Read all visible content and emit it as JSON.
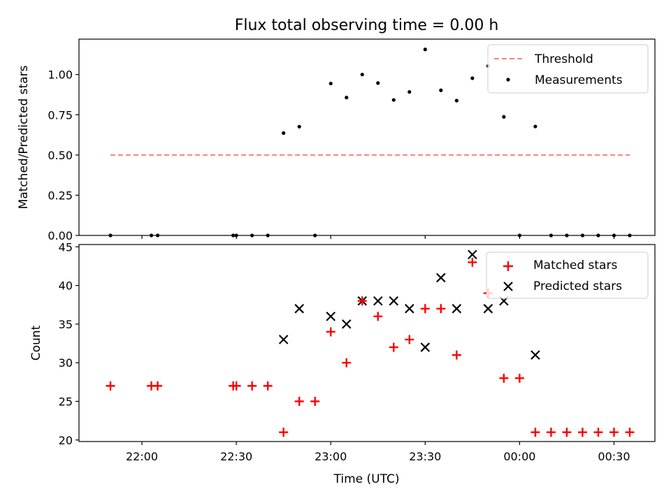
{
  "chart_data": [
    {
      "type": "scatter",
      "title": "Flux total observing time = 0.00 h",
      "xlabel": "",
      "ylabel": "Matched/Predicted stars",
      "ylim": [
        0,
        1.22
      ],
      "yticks": [
        0,
        0.25,
        0.5,
        0.75,
        1.0
      ],
      "ytick_labels": [
        "0.00",
        "0.25",
        "0.50",
        "0.75",
        "1.00"
      ],
      "legend_position": "top-right",
      "threshold": {
        "name": "Threshold",
        "value": 0.5,
        "x_range": [
          "21:50",
          "00:35"
        ],
        "color": "#ff7f7f"
      },
      "series": [
        {
          "name": "Measurements",
          "marker": "dot",
          "color": "#000000",
          "x": [
            "21:50",
            "22:03",
            "22:05",
            "22:29",
            "22:30",
            "22:35",
            "22:40",
            "22:45",
            "22:50",
            "22:55",
            "23:00",
            "23:05",
            "23:10",
            "23:15",
            "23:20",
            "23:25",
            "23:30",
            "23:35",
            "23:40",
            "23:45",
            "23:50",
            "23:55",
            "00:00",
            "00:05",
            "00:10",
            "00:15",
            "00:20",
            "00:25",
            "00:30",
            "00:35"
          ],
          "y": [
            0,
            0,
            0,
            0,
            0,
            0,
            0,
            0.636,
            0.676,
            0,
            0.944,
            0.857,
            1.0,
            0.947,
            0.842,
            0.892,
            1.156,
            0.902,
            0.838,
            0.977,
            1.053,
            0.737,
            0,
            0.677,
            0,
            0,
            0,
            0,
            0,
            0
          ]
        }
      ]
    },
    {
      "type": "scatter",
      "title": "",
      "xlabel": "Time (UTC)",
      "ylabel": "Count",
      "ylim": [
        19.8,
        45.3
      ],
      "yticks": [
        20,
        25,
        30,
        35,
        40,
        45
      ],
      "ytick_labels": [
        "20",
        "25",
        "30",
        "35",
        "40",
        "45"
      ],
      "xlim": [
        "21:40",
        "00:43"
      ],
      "xticks": [
        "22:00",
        "22:30",
        "23:00",
        "23:30",
        "00:00",
        "00:30"
      ],
      "legend_position": "top-right",
      "series": [
        {
          "name": "Matched stars",
          "marker": "plus",
          "color": "#ff0000",
          "x": [
            "21:50",
            "22:03",
            "22:05",
            "22:29",
            "22:30",
            "22:35",
            "22:40",
            "22:45",
            "22:50",
            "22:55",
            "23:00",
            "23:05",
            "23:10",
            "23:15",
            "23:20",
            "23:25",
            "23:30",
            "23:35",
            "23:40",
            "23:45",
            "23:50",
            "23:55",
            "00:00",
            "00:05",
            "00:10",
            "00:15",
            "00:20",
            "00:25",
            "00:30",
            "00:35"
          ],
          "y": [
            27,
            27,
            27,
            27,
            27,
            27,
            27,
            21,
            25,
            25,
            34,
            30,
            38,
            36,
            32,
            33,
            37,
            37,
            31,
            43,
            39,
            28,
            28,
            21,
            21,
            21,
            21,
            21,
            21,
            21
          ]
        },
        {
          "name": "Predicted stars",
          "marker": "x",
          "color": "#000000",
          "x": [
            "22:45",
            "22:50",
            "23:00",
            "23:05",
            "23:10",
            "23:15",
            "23:20",
            "23:25",
            "23:30",
            "23:35",
            "23:40",
            "23:45",
            "23:50",
            "23:55",
            "00:05"
          ],
          "y": [
            33,
            37,
            36,
            35,
            38,
            38,
            38,
            37,
            32,
            41,
            37,
            44,
            37,
            38,
            31
          ]
        }
      ]
    }
  ]
}
